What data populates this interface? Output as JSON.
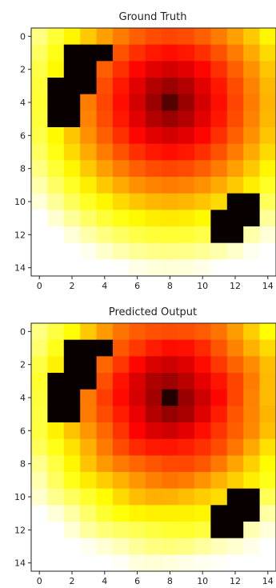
{
  "chart_data": [
    {
      "type": "heatmap",
      "title": "Ground Truth",
      "colormap": "hot",
      "shape": [
        15,
        15
      ],
      "xlim": [
        -0.5,
        14.5
      ],
      "ylim": [
        14.5,
        -0.5
      ],
      "x_ticks": [
        0,
        2,
        4,
        6,
        8,
        10,
        12,
        14
      ],
      "y_ticks": [
        0,
        2,
        4,
        6,
        8,
        10,
        12,
        14
      ],
      "x_tick_labels": [
        "0",
        "2",
        "4",
        "6",
        "8",
        "10",
        "12",
        "14"
      ],
      "y_tick_labels": [
        "0",
        "2",
        "4",
        "6",
        "8",
        "10",
        "12",
        "14"
      ],
      "peak": [
        8,
        4
      ],
      "obstacles": [
        [
          1,
          2
        ],
        [
          1,
          3
        ],
        [
          1,
          4
        ],
        [
          2,
          2
        ],
        [
          2,
          3
        ],
        [
          3,
          1
        ],
        [
          3,
          2
        ],
        [
          3,
          3
        ],
        [
          4,
          1
        ],
        [
          4,
          2
        ],
        [
          5,
          1
        ],
        [
          5,
          2
        ],
        [
          10,
          12
        ],
        [
          10,
          13
        ],
        [
          11,
          11
        ],
        [
          11,
          12
        ],
        [
          11,
          13
        ],
        [
          12,
          11
        ],
        [
          12,
          12
        ]
      ]
    },
    {
      "type": "heatmap",
      "title": "Predicted Output",
      "colormap": "hot",
      "shape": [
        15,
        15
      ],
      "xlim": [
        -0.5,
        14.5
      ],
      "ylim": [
        14.5,
        -0.5
      ],
      "x_ticks": [
        0,
        2,
        4,
        6,
        8,
        10,
        12,
        14
      ],
      "y_ticks": [
        0,
        2,
        4,
        6,
        8,
        10,
        12,
        14
      ],
      "x_tick_labels": [
        "0",
        "2",
        "4",
        "6",
        "8",
        "10",
        "12",
        "14"
      ],
      "y_tick_labels": [
        "0",
        "2",
        "4",
        "6",
        "8",
        "10",
        "12",
        "14"
      ],
      "peak": [
        8,
        4
      ],
      "obstacles": [
        [
          1,
          2
        ],
        [
          1,
          3
        ],
        [
          1,
          4
        ],
        [
          2,
          2
        ],
        [
          2,
          3
        ],
        [
          3,
          1
        ],
        [
          3,
          2
        ],
        [
          3,
          3
        ],
        [
          4,
          1
        ],
        [
          4,
          2
        ],
        [
          5,
          1
        ],
        [
          5,
          2
        ],
        [
          10,
          12
        ],
        [
          10,
          13
        ],
        [
          11,
          11
        ],
        [
          11,
          12
        ],
        [
          11,
          13
        ],
        [
          12,
          11
        ],
        [
          12,
          12
        ]
      ]
    }
  ]
}
